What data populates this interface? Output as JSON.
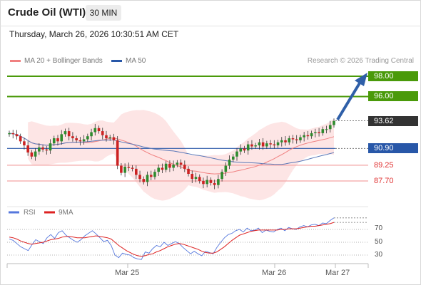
{
  "header": {
    "instrument": "Crude Oil (WTI)",
    "timeframe": "30 MIN"
  },
  "datetime": "Thursday, March 26, 2026 10:30:51 AM CET",
  "legend": {
    "ma20": "MA 20 + Bollinger Bands",
    "ma50": "MA 50",
    "credit": "Research © 2026 Trading Central"
  },
  "levels": {
    "resistance_2": "98.00",
    "resistance_1": "96.00",
    "last_price": "93.62",
    "pivot": "90.90",
    "support_1": "89.25",
    "support_2": "87.70"
  },
  "rsi_legend": {
    "rsi": "RSI",
    "ma9": "9MA"
  },
  "rsi_axis": [
    "70",
    "50",
    "30"
  ],
  "date_axis": [
    "Mar 25",
    "Mar 26",
    "Mar 27"
  ],
  "colors": {
    "resistance": "#4a9a0a",
    "pivot": "#2857a8",
    "support": "#e03333",
    "bollinger": "#fde0e0",
    "ma20": "#f08080",
    "ma50": "#5a78b8",
    "candle_up": "#2e8b2e",
    "candle_down": "#cc2222",
    "rsi": "#5577dd",
    "rsi_ma": "#dd2222",
    "arrow": "#2f5fa8"
  },
  "chart_data": {
    "type": "candlestick",
    "price_range": [
      85.5,
      99.5
    ],
    "scale_levels": [
      98.0,
      96.0,
      93.62,
      90.9,
      89.25,
      87.7
    ],
    "close": [
      92.4,
      92.3,
      92.1,
      91.6,
      91.2,
      90.5,
      90.1,
      90.6,
      91.0,
      90.8,
      90.7,
      91.4,
      91.9,
      91.6,
      92.3,
      92.6,
      92.1,
      91.9,
      91.7,
      91.6,
      91.8,
      92.1,
      92.5,
      92.9,
      92.6,
      92.2,
      91.9,
      92.0,
      91.7,
      89.2,
      88.5,
      89.1,
      89.0,
      88.9,
      88.3,
      87.9,
      87.6,
      88.3,
      88.1,
      88.6,
      89.0,
      88.8,
      89.4,
      89.0,
      89.3,
      89.5,
      89.3,
      88.9,
      88.4,
      87.9,
      88.1,
      87.7,
      87.4,
      87.8,
      87.5,
      87.3,
      87.9,
      88.6,
      89.2,
      89.8,
      90.1,
      90.6,
      90.9,
      90.7,
      91.3,
      91.1,
      91.2,
      91.5,
      91.1,
      91.4,
      91.3,
      91.2,
      91.5,
      91.7,
      91.5,
      91.9,
      91.8,
      91.7,
      92.0,
      92.2,
      92.1,
      92.4,
      92.5,
      92.4,
      92.8,
      92.8,
      93.2,
      93.6
    ],
    "rsi": [
      55,
      53,
      48,
      43,
      40,
      37,
      46,
      54,
      51,
      48,
      57,
      62,
      56,
      65,
      68,
      61,
      57,
      53,
      50,
      54,
      60,
      64,
      68,
      63,
      57,
      51,
      53,
      45,
      30,
      26,
      33,
      31,
      30,
      26,
      24,
      23,
      35,
      33,
      40,
      45,
      43,
      50,
      45,
      48,
      51,
      48,
      42,
      37,
      32,
      36,
      32,
      29,
      36,
      34,
      32,
      42,
      50,
      57,
      62,
      64,
      68,
      70,
      66,
      72,
      68,
      69,
      72,
      65,
      69,
      67,
      66,
      70,
      72,
      68,
      73,
      71,
      70,
      74,
      76,
      74,
      77,
      78,
      76,
      80,
      79,
      84,
      88
    ],
    "rsi_ma": [
      58,
      57,
      55,
      52,
      50,
      48,
      47,
      48,
      49,
      50,
      52,
      54,
      55,
      56,
      58,
      59,
      59,
      58,
      57,
      57,
      57,
      58,
      59,
      60,
      59,
      58,
      57,
      55,
      50,
      45,
      41,
      37,
      34,
      31,
      29,
      28,
      29,
      31,
      32,
      35,
      37,
      40,
      43,
      45,
      47,
      48,
      47,
      45,
      43,
      41,
      39,
      36,
      34,
      33,
      33,
      35,
      39,
      43,
      48,
      53,
      57,
      61,
      63,
      65,
      67,
      68,
      69,
      69,
      69,
      69,
      69,
      69,
      70,
      70,
      71,
      71,
      71,
      72,
      73,
      74,
      75,
      75,
      76,
      77,
      78,
      79,
      81
    ],
    "rsi_levels": [
      70,
      50,
      30
    ],
    "dates": [
      "Mar 25",
      "Mar 26",
      "Mar 27"
    ]
  }
}
